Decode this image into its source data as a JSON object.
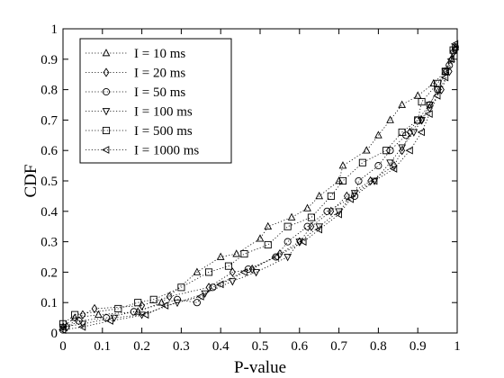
{
  "chart_data": {
    "type": "scatter",
    "xlabel": "P-value",
    "ylabel": "CDF",
    "xlim": [
      0,
      1
    ],
    "ylim": [
      0,
      1
    ],
    "xticks": [
      "0",
      "0.1",
      "0.2",
      "0.3",
      "0.4",
      "0.5",
      "0.6",
      "0.7",
      "0.8",
      "0.9",
      "1"
    ],
    "yticks": [
      "0",
      "0.1",
      "0.2",
      "0.3",
      "0.4",
      "0.5",
      "0.6",
      "0.7",
      "0.8",
      "0.9",
      "1"
    ],
    "grid": false,
    "legend_position": "top-left",
    "line_style": "dotted",
    "series": [
      {
        "name": "I = 10 ms",
        "marker": "triangle-up",
        "points": [
          [
            0,
            0.02
          ],
          [
            0.03,
            0.05
          ],
          [
            0.09,
            0.06
          ],
          [
            0.19,
            0.07
          ],
          [
            0.25,
            0.1
          ],
          [
            0.34,
            0.2
          ],
          [
            0.4,
            0.25
          ],
          [
            0.44,
            0.26
          ],
          [
            0.5,
            0.31
          ],
          [
            0.52,
            0.35
          ],
          [
            0.58,
            0.38
          ],
          [
            0.62,
            0.41
          ],
          [
            0.65,
            0.45
          ],
          [
            0.7,
            0.5
          ],
          [
            0.71,
            0.55
          ],
          [
            0.77,
            0.6
          ],
          [
            0.8,
            0.65
          ],
          [
            0.83,
            0.7
          ],
          [
            0.86,
            0.75
          ],
          [
            0.9,
            0.78
          ],
          [
            0.94,
            0.82
          ],
          [
            0.97,
            0.86
          ],
          [
            0.985,
            0.9
          ],
          [
            0.995,
            0.94
          ]
        ]
      },
      {
        "name": "I = 20 ms",
        "marker": "diamond",
        "points": [
          [
            0.01,
            0.02
          ],
          [
            0.05,
            0.06
          ],
          [
            0.08,
            0.08
          ],
          [
            0.2,
            0.09
          ],
          [
            0.27,
            0.12
          ],
          [
            0.37,
            0.15
          ],
          [
            0.43,
            0.2
          ],
          [
            0.48,
            0.21
          ],
          [
            0.55,
            0.26
          ],
          [
            0.6,
            0.3
          ],
          [
            0.63,
            0.35
          ],
          [
            0.68,
            0.4
          ],
          [
            0.72,
            0.45
          ],
          [
            0.78,
            0.5
          ],
          [
            0.84,
            0.55
          ],
          [
            0.86,
            0.6
          ],
          [
            0.88,
            0.66
          ],
          [
            0.91,
            0.7
          ],
          [
            0.93,
            0.74
          ],
          [
            0.96,
            0.8
          ],
          [
            0.98,
            0.86
          ],
          [
            0.995,
            0.93
          ]
        ]
      },
      {
        "name": "I = 50 ms",
        "marker": "circle",
        "points": [
          [
            0,
            0.01
          ],
          [
            0.04,
            0.04
          ],
          [
            0.11,
            0.05
          ],
          [
            0.18,
            0.07
          ],
          [
            0.29,
            0.11
          ],
          [
            0.34,
            0.1
          ],
          [
            0.38,
            0.15
          ],
          [
            0.47,
            0.21
          ],
          [
            0.54,
            0.25
          ],
          [
            0.57,
            0.3
          ],
          [
            0.62,
            0.35
          ],
          [
            0.67,
            0.4
          ],
          [
            0.74,
            0.45
          ],
          [
            0.75,
            0.5
          ],
          [
            0.8,
            0.55
          ],
          [
            0.83,
            0.6
          ],
          [
            0.87,
            0.65
          ],
          [
            0.9,
            0.7
          ],
          [
            0.93,
            0.75
          ],
          [
            0.95,
            0.8
          ],
          [
            0.98,
            0.88
          ],
          [
            0.995,
            0.94
          ]
        ]
      },
      {
        "name": "I = 100 ms",
        "marker": "triangle-down",
        "points": [
          [
            0,
            0.02
          ],
          [
            0.05,
            0.03
          ],
          [
            0.13,
            0.05
          ],
          [
            0.2,
            0.06
          ],
          [
            0.29,
            0.1
          ],
          [
            0.36,
            0.13
          ],
          [
            0.43,
            0.17
          ],
          [
            0.49,
            0.2
          ],
          [
            0.57,
            0.25
          ],
          [
            0.6,
            0.3
          ],
          [
            0.65,
            0.35
          ],
          [
            0.7,
            0.4
          ],
          [
            0.74,
            0.46
          ],
          [
            0.79,
            0.5
          ],
          [
            0.83,
            0.56
          ],
          [
            0.86,
            0.61
          ],
          [
            0.89,
            0.66
          ],
          [
            0.91,
            0.7
          ],
          [
            0.93,
            0.75
          ],
          [
            0.95,
            0.8
          ],
          [
            0.97,
            0.86
          ],
          [
            0.99,
            0.92
          ]
        ]
      },
      {
        "name": "I = 500 ms",
        "marker": "square",
        "points": [
          [
            0,
            0.03
          ],
          [
            0.03,
            0.06
          ],
          [
            0.14,
            0.08
          ],
          [
            0.19,
            0.1
          ],
          [
            0.23,
            0.11
          ],
          [
            0.3,
            0.15
          ],
          [
            0.37,
            0.2
          ],
          [
            0.42,
            0.22
          ],
          [
            0.46,
            0.26
          ],
          [
            0.52,
            0.29
          ],
          [
            0.57,
            0.35
          ],
          [
            0.63,
            0.38
          ],
          [
            0.68,
            0.45
          ],
          [
            0.71,
            0.5
          ],
          [
            0.76,
            0.56
          ],
          [
            0.82,
            0.6
          ],
          [
            0.86,
            0.66
          ],
          [
            0.9,
            0.7
          ],
          [
            0.91,
            0.76
          ],
          [
            0.95,
            0.82
          ],
          [
            0.97,
            0.86
          ],
          [
            0.99,
            0.93
          ]
        ]
      },
      {
        "name": "I = 1000 ms",
        "marker": "triangle-left",
        "points": [
          [
            0,
            0.01
          ],
          [
            0.05,
            0.02
          ],
          [
            0.12,
            0.04
          ],
          [
            0.21,
            0.06
          ],
          [
            0.26,
            0.09
          ],
          [
            0.35,
            0.12
          ],
          [
            0.4,
            0.16
          ],
          [
            0.46,
            0.2
          ],
          [
            0.54,
            0.25
          ],
          [
            0.61,
            0.3
          ],
          [
            0.65,
            0.34
          ],
          [
            0.7,
            0.39
          ],
          [
            0.73,
            0.44
          ],
          [
            0.79,
            0.5
          ],
          [
            0.84,
            0.54
          ],
          [
            0.88,
            0.6
          ],
          [
            0.91,
            0.66
          ],
          [
            0.93,
            0.72
          ],
          [
            0.95,
            0.78
          ],
          [
            0.97,
            0.84
          ],
          [
            0.985,
            0.9
          ],
          [
            0.995,
            0.95
          ]
        ]
      }
    ]
  }
}
